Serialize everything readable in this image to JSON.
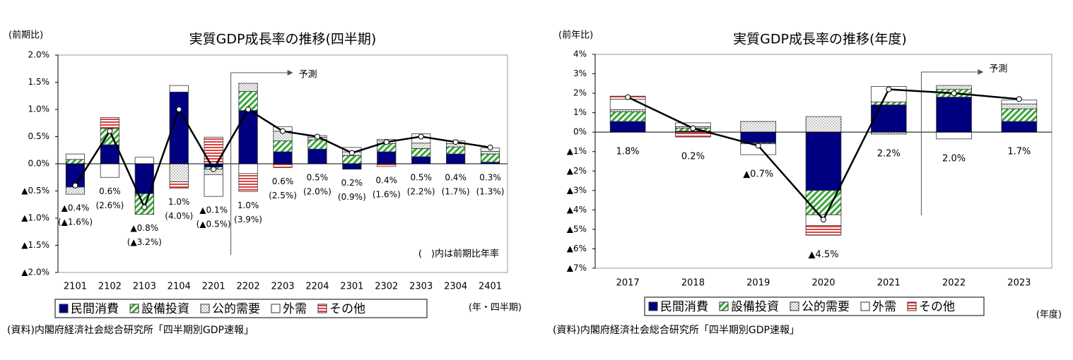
{
  "chart_data": [
    {
      "type": "bar",
      "title": "実質GDP成長率の推移(四半期)",
      "y_unit": "(前期比)",
      "x_unit": "(年・四半期)",
      "note": "(　)内は前期比年率",
      "source": "(資料)内閣府経済社会総合研究所「四半期別GDP速報」",
      "forecast": {
        "text": "予測",
        "x": "2202"
      },
      "categories": [
        "2101",
        "2102",
        "2103",
        "2104",
        "2201",
        "2202",
        "2203",
        "2204",
        "2301",
        "2302",
        "2303",
        "2304",
        "2401"
      ],
      "series": [
        {
          "name": "民間消費",
          "color": "#000080",
          "values": [
            -0.43,
            0.35,
            -0.55,
            1.32,
            -0.06,
            0.98,
            0.22,
            0.27,
            -0.1,
            0.22,
            0.13,
            0.18,
            0.03
          ]
        },
        {
          "name": "設備投資",
          "color": "#3aa63a",
          "values": [
            0.08,
            0.3,
            -0.38,
            0,
            -0.04,
            0.35,
            0.2,
            0.17,
            0.15,
            0.15,
            0.15,
            0.13,
            0.15
          ]
        },
        {
          "name": "公的需要",
          "color": "#888888",
          "values": [
            -0.13,
            0,
            0,
            -0.33,
            -0.1,
            0.15,
            0.18,
            0.05,
            0.07,
            0.05,
            0.1,
            0.06,
            0.05
          ]
        },
        {
          "name": "外需",
          "color": "#ffffff",
          "values": [
            0.1,
            -0.25,
            0.12,
            0.12,
            -0.4,
            -0.18,
            0.08,
            0.03,
            0.08,
            0.03,
            0.17,
            0.05,
            0.06
          ]
        },
        {
          "name": "その他",
          "color": "#e04040",
          "values": [
            0,
            0.2,
            0,
            -0.12,
            0.49,
            -0.33,
            -0.07,
            0,
            0,
            -0.05,
            0,
            0,
            0
          ]
        }
      ],
      "line_values": [
        -0.4,
        0.6,
        -0.8,
        1.0,
        -0.1,
        1.0,
        0.6,
        0.5,
        0.2,
        0.4,
        0.5,
        0.4,
        0.3
      ],
      "line_value_labels": [
        "▲0.4%",
        "0.6%",
        "▲0.8%",
        "1.0%",
        "▲0.1%",
        "1.0%",
        "0.6%",
        "0.5%",
        "0.2%",
        "0.4%",
        "0.5%",
        "0.4%",
        "0.3%"
      ],
      "yoy_values": [
        -1.6,
        2.6,
        -3.2,
        4.0,
        -0.5,
        3.9,
        2.5,
        2.0,
        0.9,
        1.6,
        2.2,
        1.7,
        1.3
      ],
      "yoy_value_labels": [
        "(▲1.6%)",
        "(2.6%)",
        "(▲3.2%)",
        "(4.0%)",
        "(▲0.5%)",
        "(3.9%)",
        "(2.5%)",
        "(2.0%)",
        "(0.9%)",
        "(1.6%)",
        "(2.2%)",
        "(1.7%)",
        "(1.3%)"
      ],
      "ylim": [
        -2.0,
        2.0
      ],
      "yticks": [
        {
          "value": 2.0,
          "label": "2.0%"
        },
        {
          "value": 1.5,
          "label": "1.5%"
        },
        {
          "value": 1.0,
          "label": "1.0%"
        },
        {
          "value": 0.5,
          "label": "0.5%"
        },
        {
          "value": 0.0,
          "label": "0.0%"
        },
        {
          "value": -0.5,
          "label": "▲0.5%"
        },
        {
          "value": -1.0,
          "label": "▲1.0%"
        },
        {
          "value": -1.5,
          "label": "▲1.5%"
        },
        {
          "value": -2.0,
          "label": "▲2.0%"
        }
      ]
    },
    {
      "type": "bar",
      "title": "実質GDP成長率の推移(年度)",
      "y_unit": "(前年比)",
      "x_unit": "(年度)",
      "source": "(資料)内閣府経済社会総合研究所「四半期別GDP速報」",
      "forecast": {
        "text": "予測",
        "x": "2022"
      },
      "categories": [
        "2017",
        "2018",
        "2019",
        "2020",
        "2021",
        "2022",
        "2023"
      ],
      "series": [
        {
          "name": "民間消費",
          "color": "#000080",
          "values": [
            0.55,
            0.05,
            -0.55,
            -3.0,
            1.4,
            1.8,
            0.55
          ]
        },
        {
          "name": "設備投資",
          "color": "#3aa63a",
          "values": [
            0.5,
            0.15,
            -0.05,
            -1.25,
            0.15,
            0.4,
            0.65
          ]
        },
        {
          "name": "公的需要",
          "color": "#888888",
          "values": [
            0.1,
            0.08,
            0.55,
            0.8,
            -0.1,
            0.2,
            0.25
          ]
        },
        {
          "name": "外需",
          "color": "#ffffff",
          "values": [
            0.55,
            0.2,
            -0.56,
            -0.55,
            0.8,
            -0.35,
            0.2
          ]
        },
        {
          "name": "その他",
          "color": "#e04040",
          "values": [
            0.15,
            -0.25,
            0,
            -0.5,
            0,
            0,
            0
          ]
        }
      ],
      "line_values": [
        1.8,
        0.2,
        -0.7,
        -4.5,
        2.2,
        2.0,
        1.7
      ],
      "line_value_labels": [
        "1.8%",
        "0.2%",
        "▲0.7%",
        "▲4.5%",
        "2.2%",
        "2.0%",
        "1.7%"
      ],
      "ylim": [
        -7,
        4
      ],
      "yticks": [
        {
          "value": 4,
          "label": "4%"
        },
        {
          "value": 3,
          "label": "3%"
        },
        {
          "value": 2,
          "label": "2%"
        },
        {
          "value": 1,
          "label": "1%"
        },
        {
          "value": 0,
          "label": "0%"
        },
        {
          "value": -1,
          "label": "▲1%"
        },
        {
          "value": -2,
          "label": "▲2%"
        },
        {
          "value": -3,
          "label": "▲3%"
        },
        {
          "value": -4,
          "label": "▲4%"
        },
        {
          "value": -5,
          "label": "▲5%"
        },
        {
          "value": -6,
          "label": "▲6%"
        },
        {
          "value": -7,
          "label": "▲7%"
        }
      ]
    }
  ]
}
